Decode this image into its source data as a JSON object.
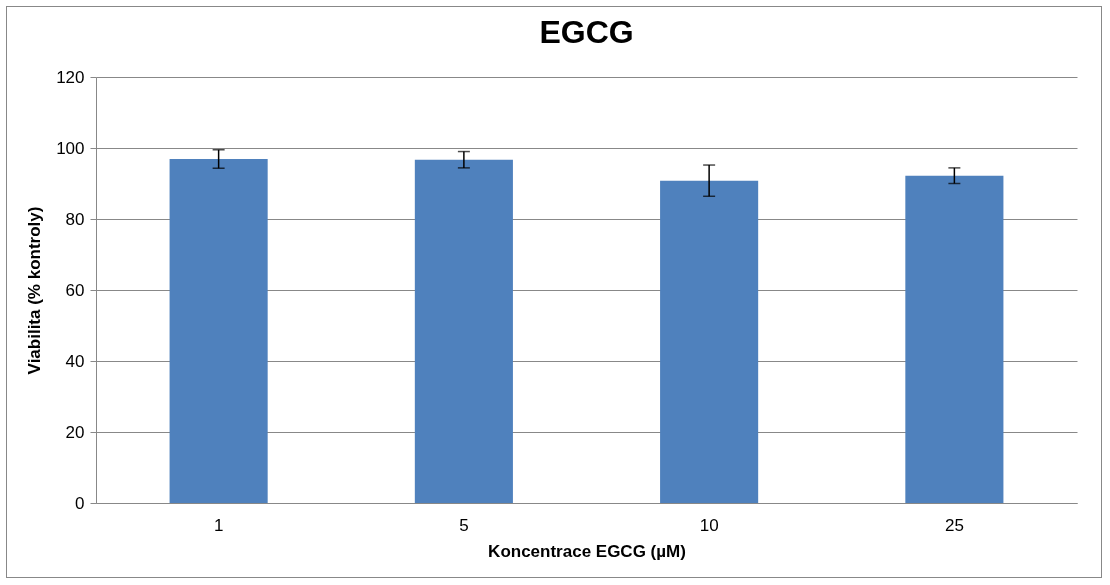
{
  "chart_data": {
    "type": "bar",
    "title": "EGCG",
    "xlabel": "Koncentrace EGCG (µM)",
    "ylabel": "Viabilita (% kontroly)",
    "categories": [
      "1",
      "5",
      "10",
      "25"
    ],
    "values": [
      96.9,
      96.7,
      90.8,
      92.2
    ],
    "errors": [
      2.6,
      2.3,
      4.4,
      2.2
    ],
    "color": "#4f81bd",
    "ylim": [
      0,
      120
    ],
    "yticks": [
      0,
      20,
      40,
      60,
      80,
      100,
      120
    ],
    "grid": "y"
  }
}
